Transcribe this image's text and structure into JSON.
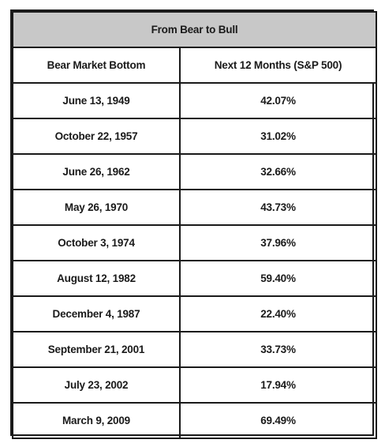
{
  "chart_data": {
    "type": "table",
    "title": "From Bear to Bull",
    "columns": [
      "Bear Market Bottom",
      "Next 12 Months (S&P 500)"
    ],
    "rows": [
      {
        "date": "June 13, 1949",
        "return": "42.07%"
      },
      {
        "date": "October 22, 1957",
        "return": "31.02%"
      },
      {
        "date": "June 26, 1962",
        "return": "32.66%"
      },
      {
        "date": "May 26, 1970",
        "return": "43.73%"
      },
      {
        "date": "October 3, 1974",
        "return": "37.96%"
      },
      {
        "date": "August 12, 1982",
        "return": "59.40%"
      },
      {
        "date": "December 4, 1987",
        "return": "22.40%"
      },
      {
        "date": "September 21, 2001",
        "return": "33.73%"
      },
      {
        "date": "July 23, 2002",
        "return": "17.94%"
      },
      {
        "date": "March 9, 2009",
        "return": "69.49%"
      }
    ]
  },
  "colors": {
    "title_background": "#c8c8c8",
    "border": "#1a1a1a",
    "text": "#1a1a1a"
  }
}
